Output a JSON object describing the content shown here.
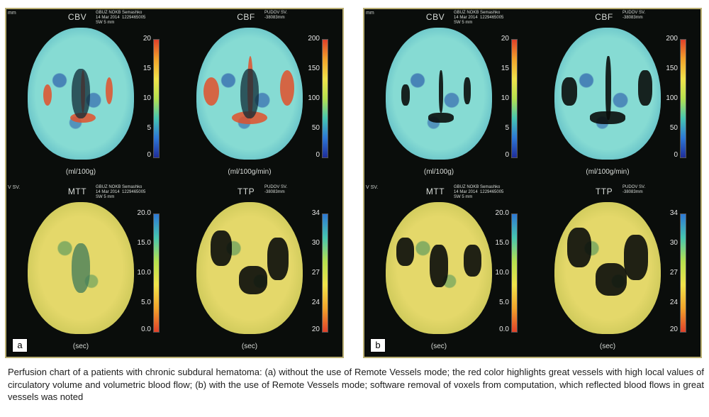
{
  "panels": [
    {
      "label": "a",
      "maps": [
        {
          "title": "CBV",
          "unit": "(ml/100g)",
          "ticks": [
            "20",
            "15",
            "10",
            "5",
            "0"
          ],
          "meta": "GBUZ NOKB Semashko\n14 Mar 2014  1229465005\nSW 5 mm"
        },
        {
          "title": "CBF",
          "unit": "(ml/100g/min)",
          "ticks": [
            "200",
            "150",
            "100",
            "50",
            "0"
          ],
          "meta": "PUDOV SV.\n-38083mm"
        },
        {
          "title": "MTT",
          "unit": "(sec)",
          "ticks": [
            "20.0",
            "15.0",
            "10.0",
            "5.0",
            "0.0"
          ],
          "meta": "GBUZ NOKB Semashko\n14 Mar 2014  1229465005\nSW 5 mm"
        },
        {
          "title": "TTP",
          "unit": "(sec)",
          "ticks": [
            "34",
            "30",
            "27",
            "24",
            "20"
          ],
          "meta": "PUDOV SV.\n-38083mm"
        }
      ]
    },
    {
      "label": "b",
      "maps": [
        {
          "title": "CBV",
          "unit": "(ml/100g)",
          "ticks": [
            "20",
            "15",
            "10",
            "5",
            "0"
          ],
          "meta": "GBUZ NOKB Semashko\n14 Mar 2014  1229465005\nSW 5 mm"
        },
        {
          "title": "CBF",
          "unit": "(ml/100g/min)",
          "ticks": [
            "200",
            "150",
            "100",
            "50",
            "0"
          ],
          "meta": "PUDOV SV.\n-38083mm"
        },
        {
          "title": "MTT",
          "unit": "(sec)",
          "ticks": [
            "20.0",
            "15.0",
            "10.0",
            "5.0",
            "0.0"
          ],
          "meta": "GBUZ NOKB Semashko\n14 Mar 2014  1229465005\nSW 5 mm"
        },
        {
          "title": "TTP",
          "unit": "(sec)",
          "ticks": [
            "34",
            "30",
            "27",
            "24",
            "20"
          ],
          "meta": "PUDOV SV.\n-38083mm"
        }
      ]
    }
  ],
  "edge_fragments": {
    "top_left": "mm",
    "mid_left": "V SV."
  },
  "colors": {
    "panel_border": "#b9ae72",
    "hot_vessel": "#e2502a",
    "perfusion_base": "#86dbd3",
    "time_base": "#e4d86a"
  },
  "caption": "Perfusion chart of a patients with chronic subdural hematoma: (a) without the use of Remote Vessels mode; the red color highlights great vessels with high local values of circulatory volume and volumetric blood flow; (b) with the use of Remote Vessels mode; software removal of voxels from computation, which reflected blood flows in great vessels was noted"
}
